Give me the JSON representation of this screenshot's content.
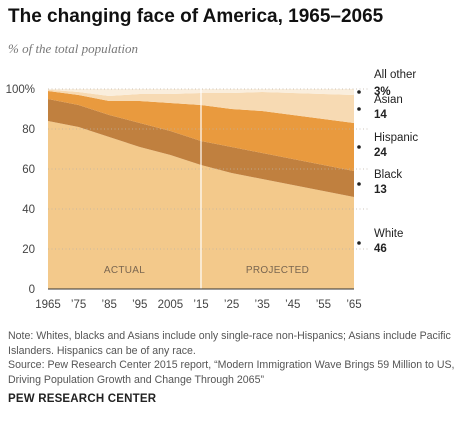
{
  "title": "The changing face of America, 1965–2065",
  "subtitle": "% of the total population",
  "note": "Note: Whites, blacks and Asians include only single-race non-Hispanics; Asians include Pacific Islanders. Hispanics can be of any race.",
  "source": "Source:  Pew Research Center 2015 report, “Modern Immigration Wave Brings 59 Million to US, Driving Population Growth and Change Through 2065”",
  "credit": "PEW RESEARCH CENTER",
  "chart_data": {
    "type": "area",
    "stacked": true,
    "x": [
      1965,
      1975,
      1985,
      1995,
      2005,
      2015,
      2025,
      2035,
      2045,
      2055,
      2065
    ],
    "x_tick_labels": [
      "1965",
      "’75",
      "’85",
      "’95",
      "2005",
      "’15",
      "’25",
      "’35",
      "’45",
      "’55",
      "’65"
    ],
    "y_ticks": [
      0,
      20,
      40,
      60,
      80,
      100
    ],
    "y_tick_labels": [
      "0",
      "20",
      "40",
      "60",
      "80",
      "100%"
    ],
    "ylim": [
      0,
      100
    ],
    "grid": "dotted horizontal",
    "region_labels": [
      "ACTUAL",
      "PROJECTED"
    ],
    "divider_x": 2015,
    "series": [
      {
        "name": "White",
        "label_value": "46",
        "color": "#f3c98b",
        "values": [
          84,
          81,
          76,
          71,
          67,
          62,
          58,
          55,
          52,
          49,
          46
        ]
      },
      {
        "name": "Black",
        "label_value": "13",
        "color": "#c0803f",
        "values": [
          11,
          11,
          11,
          12,
          12,
          12,
          13,
          13,
          13,
          13,
          13
        ]
      },
      {
        "name": "Hispanic",
        "label_value": "24",
        "color": "#e99a3e",
        "values": [
          4,
          5,
          7,
          11,
          14,
          18,
          19,
          21,
          22,
          23,
          24
        ]
      },
      {
        "name": "Asian",
        "label_value": "14",
        "color": "#f7dab3",
        "values": [
          0.7,
          1.5,
          2.5,
          3.5,
          4.5,
          6,
          8,
          9.5,
          11,
          12.5,
          14
        ]
      },
      {
        "name": "All other",
        "label_value": "3%",
        "color": "#faeedd",
        "values": [
          0.3,
          1.5,
          3.5,
          2.5,
          2.5,
          2,
          2,
          1.5,
          2,
          2.5,
          3
        ]
      }
    ]
  }
}
